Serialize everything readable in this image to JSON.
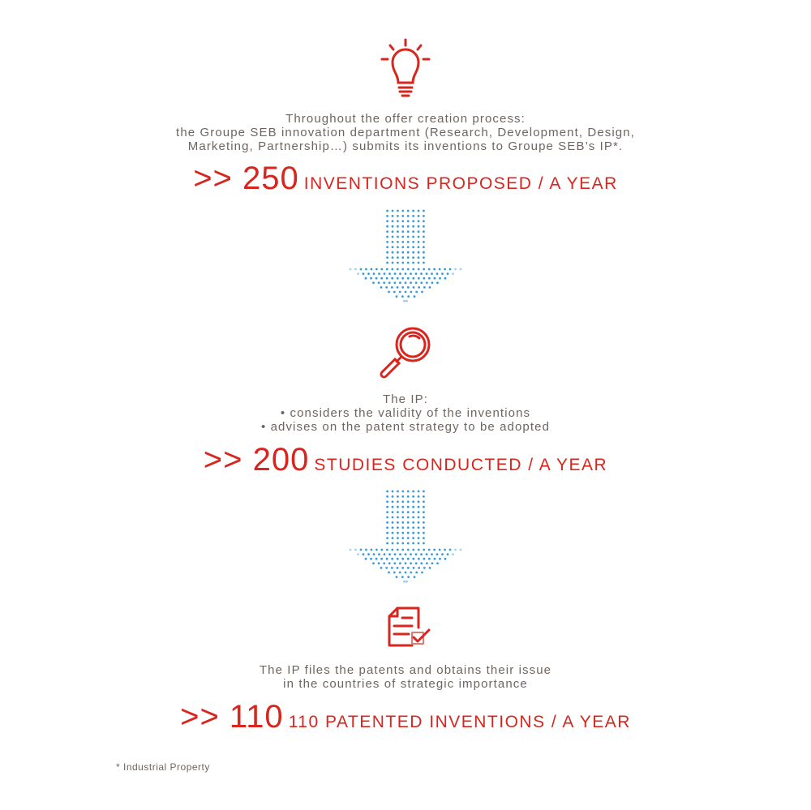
{
  "colors": {
    "accent_red": "#d8261e",
    "text_gray": "#6e6560",
    "arrow_blue": "#3a9ad9"
  },
  "steps": [
    {
      "icon": "lightbulb-icon",
      "lines": [
        "Throughout the offer creation process:",
        "the Groupe SEB innovation department (Research, Development, Design,",
        "Marketing, Partnership…) submits its inventions to Groupe SEB’s IP*."
      ],
      "number": ">> 250",
      "label": "INVENTIONS PROPOSED / A YEAR"
    },
    {
      "icon": "magnifier-icon",
      "lines": [
        "The IP:",
        "• considers the validity of the inventions",
        "• advises on the patent strategy to be adopted"
      ],
      "number": ">> 200",
      "label": "STUDIES CONDUCTED / A YEAR"
    },
    {
      "icon": "document-check-icon",
      "lines": [
        "The IP files the patents and obtains their issue",
        "in the countries of strategic importance"
      ],
      "number": ">> 110",
      "label": "110 PATENTED INVENTIONS / A YEAR"
    }
  ],
  "footnote": "* Industrial Property"
}
